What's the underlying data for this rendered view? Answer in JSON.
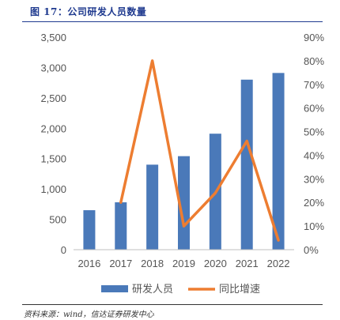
{
  "header": {
    "title": "图 17：公司研发人员数量"
  },
  "footer": {
    "source": "资料来源：wind，信达证券研发中心"
  },
  "chart_data": {
    "type": "bar",
    "categories": [
      "2016",
      "2017",
      "2018",
      "2019",
      "2020",
      "2021",
      "2022"
    ],
    "series": [
      {
        "name": "研发人员",
        "type": "bar",
        "axis": "left",
        "color": "#4a79b9",
        "values": [
          650,
          780,
          1400,
          1540,
          1910,
          2800,
          2910
        ]
      },
      {
        "name": "同比增速",
        "type": "line",
        "axis": "right",
        "color": "#ed7d31",
        "values": [
          null,
          0.2,
          0.8,
          0.1,
          0.24,
          0.46,
          0.04
        ]
      }
    ],
    "ylim": [
      0,
      3500
    ],
    "yticks": [
      "0",
      "500",
      "1,000",
      "1,500",
      "2,000",
      "2,500",
      "3,000",
      "3,500"
    ],
    "y2lim": [
      0,
      0.9
    ],
    "y2ticks": [
      "0%",
      "10%",
      "20%",
      "30%",
      "40%",
      "50%",
      "60%",
      "70%",
      "80%",
      "90%"
    ],
    "grid": false,
    "legend": "bottom"
  }
}
